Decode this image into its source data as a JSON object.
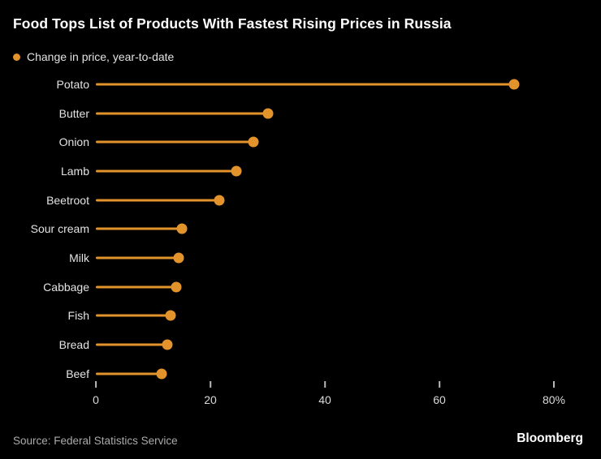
{
  "header": {
    "title": "Food Tops List of Products With Fastest Rising Prices in Russia"
  },
  "legend": {
    "label": "Change in price, year-to-date"
  },
  "footer": {
    "source": "Source: Federal Statistics Service",
    "brand": "Bloomberg"
  },
  "colors": {
    "accent": "#E2932C",
    "background": "#000000",
    "title_text": "#FFFFFF",
    "label_text": "#E3E3E3",
    "axis_text": "#DADADA",
    "source_text": "#ABABAB"
  },
  "chart_data": {
    "type": "bar",
    "style": "lollipop",
    "orientation": "horizontal",
    "title": "Food Tops List of Products With Fastest Rising Prices in Russia",
    "legend_entries": [
      "Change in price, year-to-date"
    ],
    "legend_position": "top-left",
    "categories": [
      "Potato",
      "Butter",
      "Onion",
      "Lamb",
      "Beetroot",
      "Sour cream",
      "Milk",
      "Cabbage",
      "Fish",
      "Bread",
      "Beef"
    ],
    "values": [
      73,
      30,
      27.5,
      24.5,
      21.5,
      15,
      14.5,
      14,
      13,
      12.5,
      11.5
    ],
    "unit": "%",
    "xlabel": "",
    "ylabel": "",
    "xlim": [
      0,
      80
    ],
    "x_ticks": [
      0,
      20,
      40,
      60,
      80
    ],
    "x_tick_labels": [
      "0",
      "20",
      "40",
      "60",
      "80%"
    ],
    "grid": false
  }
}
